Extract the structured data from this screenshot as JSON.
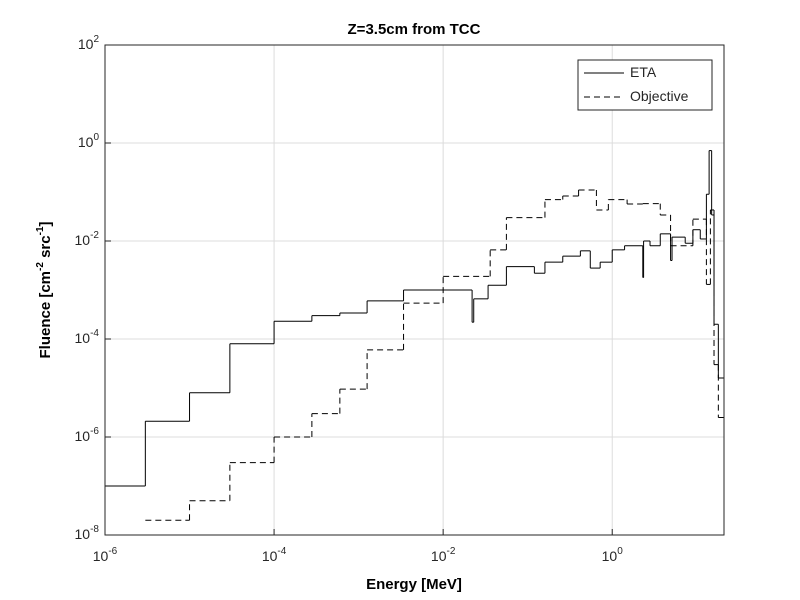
{
  "chart_data": {
    "type": "stairs",
    "title": "Z=3.5cm from TCC",
    "x_label": "Energy [MeV]",
    "y_label": "Fluence [cm^-2 src^-1]",
    "x_scale": "log",
    "y_scale": "log",
    "grid": true,
    "legend": "upper right",
    "xlim": [
      1e-06,
      21
    ],
    "ylim": [
      1e-08,
      100
    ],
    "xticks": [
      {
        "value": 1e-06,
        "label": "10^-6"
      },
      {
        "value": 0.0001,
        "label": "10^-4"
      },
      {
        "value": 0.01,
        "label": "10^-2"
      },
      {
        "value": 1,
        "label": "10^0"
      }
    ],
    "yticks": [
      {
        "value": 1e-08,
        "label": "10^-8"
      },
      {
        "value": 1e-06,
        "label": "10^-6"
      },
      {
        "value": 0.0001,
        "label": "10^-4"
      },
      {
        "value": 0.01,
        "label": "10^-2"
      },
      {
        "value": 1,
        "label": "10^0"
      },
      {
        "value": 100,
        "label": "10^2"
      }
    ],
    "series": [
      {
        "name": "ETA",
        "color": "#000000",
        "dash": "solid",
        "x": [
          1e-06,
          3e-06,
          1e-05,
          3e-05,
          0.0001,
          0.00028,
          0.0006,
          0.00126,
          0.0034,
          0.022,
          0.023,
          0.034,
          0.056,
          0.12,
          0.16,
          0.26,
          0.42,
          0.55,
          0.72,
          1.0,
          1.4,
          2.3,
          2.35,
          2.8,
          3.7,
          4.9,
          5.1,
          7.3,
          9,
          11,
          13,
          14,
          15,
          16,
          18
        ],
        "values": [
          1e-07,
          2.1e-06,
          8e-06,
          8e-05,
          0.00023,
          0.0003,
          0.00034,
          0.0006,
          0.001,
          0.00022,
          0.00066,
          0.00125,
          0.003,
          0.0022,
          0.0037,
          0.0049,
          0.0063,
          0.0028,
          0.0037,
          0.0066,
          0.008,
          0.0018,
          0.01,
          0.008,
          0.014,
          0.004,
          0.012,
          0.009,
          0.017,
          0.011,
          0.09,
          0.7,
          0.034,
          0.0002,
          1.6e-05
        ]
      },
      {
        "name": "Objective",
        "color": "#000000",
        "dash": "dashed",
        "x": [
          3e-06,
          1e-05,
          3e-05,
          0.0001,
          0.00028,
          0.0006,
          0.00126,
          0.0034,
          0.01,
          0.036,
          0.056,
          0.16,
          0.26,
          0.4,
          0.65,
          0.9,
          1.5,
          2.3,
          3.7,
          4.9,
          9,
          13,
          14.5,
          16,
          18
        ],
        "values": [
          2e-08,
          5e-08,
          3e-07,
          1e-06,
          3e-06,
          9.5e-06,
          6e-05,
          0.00054,
          0.0019,
          0.0066,
          0.03,
          0.07,
          0.083,
          0.11,
          0.043,
          0.07,
          0.057,
          0.058,
          0.034,
          0.008,
          0.028,
          0.0013,
          0.043,
          3e-05,
          2.5e-06
        ]
      }
    ]
  }
}
